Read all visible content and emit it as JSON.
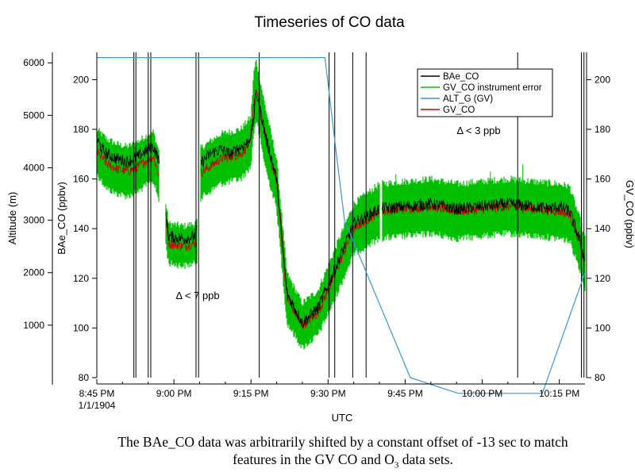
{
  "chart_data": {
    "type": "line",
    "title": "Timeseries of CO data",
    "xlabel": "UTC",
    "ylabel_left_outer": "Altitude (m)",
    "ylabel_left_inner": "BAe_CO (ppbv)",
    "ylabel_right": "GV_CO (ppbv)",
    "x_ticks": [
      "8:45 PM",
      "9:00 PM",
      "9:15 PM",
      "9:30 PM",
      "9:45 PM",
      "10:00 PM",
      "10:15 PM"
    ],
    "x_date_label": "1/1/1904",
    "xlim_minutes_after_2045": [
      0,
      95
    ],
    "altitude_axis": {
      "ticks": [
        1000,
        2000,
        3000,
        4000,
        5000,
        6000
      ],
      "ylim": [
        0,
        6200
      ]
    },
    "co_left_axis": {
      "ticks": [
        80,
        100,
        120,
        140,
        160,
        180,
        200
      ],
      "ylim": [
        80,
        211
      ]
    },
    "co_right_axis": {
      "ticks": [
        80,
        100,
        120,
        140,
        160,
        180,
        200
      ],
      "ylim": [
        80,
        211
      ]
    },
    "legend": [
      "BAe_CO",
      "GV_CO instrument error",
      "ALT_G (GV)",
      "GV_CO"
    ],
    "legend_placement": "top-right",
    "annotations": [
      "Δ < 7 ppb",
      "Δ < 3 ppb"
    ],
    "series": [
      {
        "name": "BAe_CO",
        "color": "#000000",
        "axis": "left",
        "x": [
          0,
          1,
          2,
          4,
          6,
          8,
          10,
          11,
          12,
          14,
          17,
          19,
          19.5,
          20,
          22,
          24,
          26,
          28,
          29.5,
          30,
          30.5,
          31,
          33,
          35,
          37,
          40,
          43,
          46,
          50,
          55,
          60,
          65,
          70,
          75,
          80,
          85,
          88,
          90,
          92,
          94,
          95
        ],
        "y": [
          176,
          172,
          170,
          168,
          167,
          169,
          172,
          173,
          168,
          137,
          136,
          137,
          139,
          166,
          170,
          172,
          170,
          173,
          175,
          178,
          184,
          195,
          176,
          160,
          114,
          102,
          108,
          122,
          142,
          148,
          149,
          150,
          148,
          149,
          150,
          149,
          148,
          149,
          147,
          135,
          127
        ]
      },
      {
        "name": "GV_CO",
        "color": "#cc0000",
        "axis": "right",
        "x": [
          0,
          2,
          4,
          6,
          8,
          10,
          11,
          12,
          14,
          17,
          19,
          19.5,
          20,
          24,
          28,
          30,
          30.5,
          31,
          33,
          35,
          37,
          40,
          43,
          46,
          50,
          55,
          60,
          65,
          70,
          75,
          80,
          85,
          90,
          92,
          94,
          95
        ],
        "y": [
          171,
          166,
          164,
          163,
          165,
          168,
          169,
          162,
          134,
          133,
          134,
          135,
          162,
          168,
          170,
          175,
          190,
          196,
          175,
          158,
          112,
          101,
          106,
          120,
          140,
          147,
          148,
          149,
          147,
          148,
          149,
          148,
          147,
          146,
          134,
          126
        ]
      },
      {
        "name": "GV_CO instrument error",
        "color": "#00c000",
        "axis": "right",
        "band_halfwidth": [
          9,
          10,
          10,
          10,
          10,
          10,
          10,
          10,
          8,
          8,
          8,
          8,
          10,
          10,
          10,
          10,
          12,
          12,
          12,
          10,
          10,
          9,
          9,
          10,
          10,
          11,
          11,
          11,
          11,
          11,
          11,
          11,
          11,
          11,
          10,
          10
        ]
      },
      {
        "name": "ALT_G (GV)",
        "color": "#3399dd",
        "axis": "altitude",
        "x": [
          0,
          44.4,
          46.7,
          48.2,
          61,
          70.3,
          72.4,
          79.3,
          86.7,
          95
        ],
        "y": [
          6100,
          6100,
          4200,
          3000,
          0,
          -300,
          -300,
          -300,
          -300,
          2000
        ]
      }
    ]
  },
  "caption": {
    "line1": "The BAe_CO data was arbitrarily shifted by a constant offset of -13 sec to match",
    "line2_prefix": "features in the GV CO and O",
    "line2_sub": "3",
    "line2_suffix": " data sets."
  }
}
